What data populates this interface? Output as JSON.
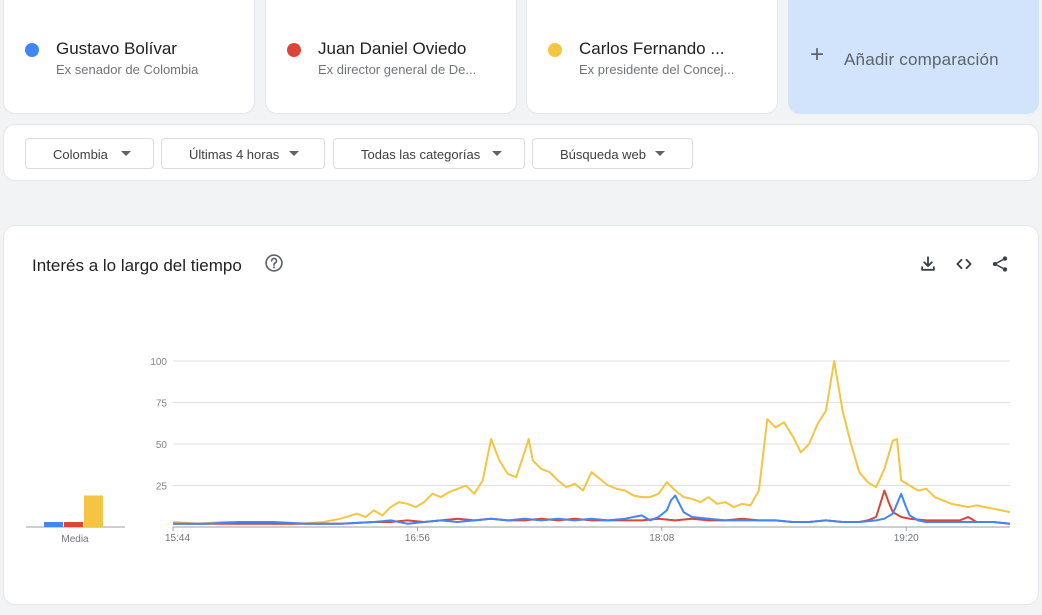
{
  "terms": [
    {
      "name": "Gustavo Bolívar",
      "desc": "Ex senador de Colombia",
      "color": "#4285f4"
    },
    {
      "name": "Juan Daniel Oviedo",
      "desc": "Ex director general de De...",
      "color": "#db4437"
    },
    {
      "name": "Carlos Fernando ...",
      "desc": "Ex presidente del Concej...",
      "color": "#f4c542"
    }
  ],
  "add_comparison": {
    "label": "Añadir comparación",
    "icon": "plus-icon"
  },
  "filters": [
    {
      "label": "Colombia"
    },
    {
      "label": "Últimas 4 horas"
    },
    {
      "label": "Todas las categorías"
    },
    {
      "label": "Búsqueda web"
    }
  ],
  "section": {
    "title": "Interés a lo largo del tiempo",
    "icons": [
      "help-icon",
      "download-icon",
      "embed-icon",
      "share-icon"
    ]
  },
  "chart_data": {
    "type": "line",
    "title": "",
    "xlabel": "",
    "ylabel": "",
    "ylim": [
      0,
      100
    ],
    "yticks": [
      25,
      50,
      75,
      100
    ],
    "xlim": [
      0,
      100
    ],
    "x_tick_labels": [
      {
        "x": 0,
        "label": "15:44"
      },
      {
        "x": 29.2,
        "label": "16:56"
      },
      {
        "x": 58.4,
        "label": "18:08"
      },
      {
        "x": 87.6,
        "label": "19:20"
      }
    ],
    "grid": true,
    "average_bar_label": "Media",
    "averages": [
      3,
      3,
      19
    ],
    "series": [
      {
        "name": "Gustavo Bolívar",
        "color": "#4285f4",
        "points": [
          [
            0,
            2
          ],
          [
            4,
            2
          ],
          [
            8,
            3
          ],
          [
            12,
            3
          ],
          [
            16,
            2
          ],
          [
            20,
            2
          ],
          [
            24,
            3
          ],
          [
            26,
            4
          ],
          [
            28,
            2
          ],
          [
            30,
            3
          ],
          [
            32,
            4
          ],
          [
            34,
            3
          ],
          [
            36,
            4
          ],
          [
            38,
            5
          ],
          [
            40,
            4
          ],
          [
            42,
            5
          ],
          [
            44,
            4
          ],
          [
            46,
            5
          ],
          [
            48,
            4
          ],
          [
            50,
            5
          ],
          [
            52,
            4
          ],
          [
            54,
            5
          ],
          [
            56,
            7
          ],
          [
            57,
            4
          ],
          [
            58,
            6
          ],
          [
            59,
            10
          ],
          [
            59.5,
            16
          ],
          [
            60,
            19
          ],
          [
            60.5,
            14
          ],
          [
            61,
            9
          ],
          [
            62,
            6
          ],
          [
            64,
            5
          ],
          [
            66,
            4
          ],
          [
            68,
            4
          ],
          [
            70,
            4
          ],
          [
            72,
            4
          ],
          [
            74,
            3
          ],
          [
            76,
            3
          ],
          [
            78,
            4
          ],
          [
            80,
            3
          ],
          [
            82,
            3
          ],
          [
            84,
            4
          ],
          [
            85,
            5
          ],
          [
            86,
            8
          ],
          [
            86.5,
            14
          ],
          [
            87,
            20
          ],
          [
            87.5,
            13
          ],
          [
            88,
            7
          ],
          [
            89,
            4
          ],
          [
            90,
            3
          ],
          [
            92,
            3
          ],
          [
            94,
            3
          ],
          [
            96,
            3
          ],
          [
            98,
            3
          ],
          [
            100,
            2
          ]
        ]
      },
      {
        "name": "Juan Daniel Oviedo",
        "color": "#db4437",
        "points": [
          [
            0,
            2
          ],
          [
            4,
            2
          ],
          [
            8,
            2
          ],
          [
            12,
            2
          ],
          [
            16,
            2
          ],
          [
            20,
            2
          ],
          [
            24,
            3
          ],
          [
            26,
            3
          ],
          [
            28,
            4
          ],
          [
            30,
            3
          ],
          [
            32,
            4
          ],
          [
            34,
            5
          ],
          [
            36,
            4
          ],
          [
            38,
            5
          ],
          [
            40,
            4
          ],
          [
            42,
            4
          ],
          [
            44,
            5
          ],
          [
            46,
            4
          ],
          [
            48,
            5
          ],
          [
            50,
            4
          ],
          [
            52,
            4
          ],
          [
            54,
            4
          ],
          [
            56,
            4
          ],
          [
            58,
            5
          ],
          [
            60,
            4
          ],
          [
            62,
            5
          ],
          [
            64,
            4
          ],
          [
            66,
            4
          ],
          [
            68,
            5
          ],
          [
            70,
            4
          ],
          [
            72,
            4
          ],
          [
            74,
            3
          ],
          [
            76,
            3
          ],
          [
            78,
            4
          ],
          [
            80,
            3
          ],
          [
            82,
            3
          ],
          [
            83,
            4
          ],
          [
            84,
            6
          ],
          [
            84.5,
            14
          ],
          [
            85,
            22
          ],
          [
            85.5,
            15
          ],
          [
            86,
            9
          ],
          [
            87,
            6
          ],
          [
            88,
            5
          ],
          [
            90,
            4
          ],
          [
            92,
            4
          ],
          [
            94,
            4
          ],
          [
            95,
            6
          ],
          [
            96,
            3
          ],
          [
            98,
            3
          ],
          [
            100,
            2
          ]
        ]
      },
      {
        "name": "Carlos Fernando ...",
        "color": "#f4c542",
        "points": [
          [
            0,
            3
          ],
          [
            3,
            2
          ],
          [
            6,
            3
          ],
          [
            9,
            3
          ],
          [
            12,
            2
          ],
          [
            15,
            2
          ],
          [
            18,
            3
          ],
          [
            20,
            5
          ],
          [
            22,
            8
          ],
          [
            23,
            6
          ],
          [
            24,
            10
          ],
          [
            25,
            7
          ],
          [
            26,
            12
          ],
          [
            27,
            15
          ],
          [
            28,
            14
          ],
          [
            29,
            12
          ],
          [
            30,
            15
          ],
          [
            31,
            20
          ],
          [
            32,
            18
          ],
          [
            33,
            21
          ],
          [
            34,
            23
          ],
          [
            35,
            25
          ],
          [
            36,
            20
          ],
          [
            37,
            28
          ],
          [
            38,
            53
          ],
          [
            39,
            40
          ],
          [
            40,
            32
          ],
          [
            41,
            30
          ],
          [
            42,
            45
          ],
          [
            42.5,
            53
          ],
          [
            43,
            40
          ],
          [
            44,
            35
          ],
          [
            45,
            33
          ],
          [
            46,
            28
          ],
          [
            47,
            24
          ],
          [
            48,
            26
          ],
          [
            49,
            22
          ],
          [
            50,
            33
          ],
          [
            51,
            29
          ],
          [
            52,
            25
          ],
          [
            53,
            23
          ],
          [
            54,
            22
          ],
          [
            55,
            19
          ],
          [
            56,
            18
          ],
          [
            57,
            18
          ],
          [
            58,
            20
          ],
          [
            59,
            27
          ],
          [
            60,
            22
          ],
          [
            61,
            18
          ],
          [
            62,
            17
          ],
          [
            63,
            15
          ],
          [
            64,
            18
          ],
          [
            65,
            14
          ],
          [
            66,
            15
          ],
          [
            67,
            12
          ],
          [
            68,
            14
          ],
          [
            69,
            13
          ],
          [
            70,
            22
          ],
          [
            71,
            65
          ],
          [
            72,
            60
          ],
          [
            73,
            63
          ],
          [
            74,
            55
          ],
          [
            75,
            45
          ],
          [
            76,
            50
          ],
          [
            77,
            62
          ],
          [
            78,
            70
          ],
          [
            79,
            100
          ],
          [
            80,
            70
          ],
          [
            81,
            50
          ],
          [
            82,
            33
          ],
          [
            83,
            27
          ],
          [
            84,
            24
          ],
          [
            85,
            35
          ],
          [
            86,
            52
          ],
          [
            86.5,
            53
          ],
          [
            87,
            28
          ],
          [
            88,
            25
          ],
          [
            89,
            22
          ],
          [
            90,
            23
          ],
          [
            91,
            18
          ],
          [
            92,
            16
          ],
          [
            93,
            14
          ],
          [
            94,
            13
          ],
          [
            95,
            12
          ],
          [
            96,
            13
          ],
          [
            97,
            12
          ],
          [
            98,
            11
          ],
          [
            99,
            10
          ],
          [
            100,
            9
          ]
        ]
      }
    ]
  }
}
